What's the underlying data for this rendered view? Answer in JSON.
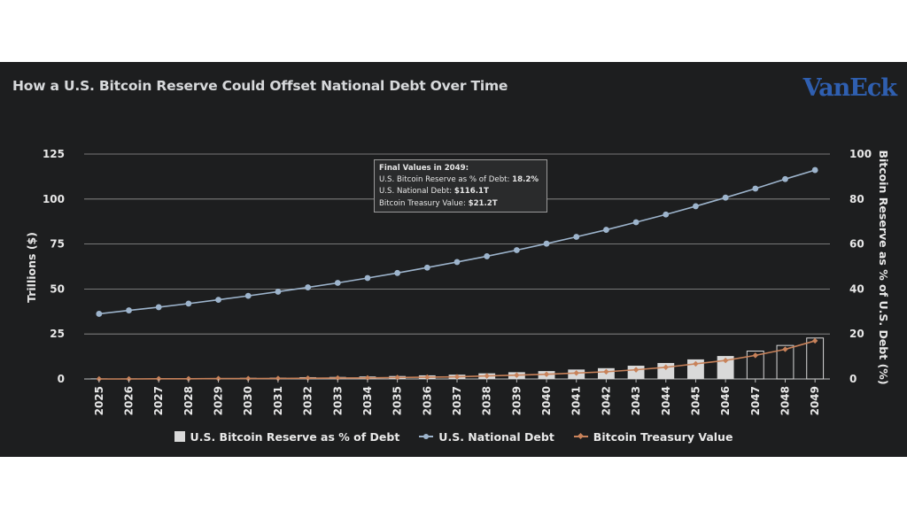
{
  "header": {
    "title": "How a U.S. Bitcoin Reserve Could Offset National Debt Over Time",
    "logo_text": "VanEck"
  },
  "tooltip": {
    "heading": "Final Values in 2049:",
    "rows": [
      {
        "label": "U.S. Bitcoin Reserve as % of Debt: ",
        "value": "18.2%"
      },
      {
        "label": "U.S. National Debt: ",
        "value": "$116.1T"
      },
      {
        "label": "Bitcoin Treasury Value: ",
        "value": "$21.2T"
      }
    ]
  },
  "colors": {
    "background": "#1d1e1f",
    "bars": "#d9d9d9",
    "bars_late": "#1d1e1f",
    "debt_line": "#9db4cc",
    "treasury_line": "#c8825a",
    "grid": "#bdbdbd"
  },
  "chart_data": {
    "type": "bar+line",
    "title": "How a U.S. Bitcoin Reserve Could Offset National Debt Over Time",
    "x": [
      "2025",
      "2026",
      "2027",
      "2028",
      "2029",
      "2030",
      "2031",
      "2032",
      "2033",
      "2034",
      "2035",
      "2036",
      "2037",
      "2038",
      "2039",
      "2040",
      "2041",
      "2042",
      "2043",
      "2044",
      "2045",
      "2046",
      "2047",
      "2048",
      "2049"
    ],
    "y_left": {
      "label": "Trillions ($)",
      "range": [
        0,
        125
      ],
      "ticks": [
        0,
        25,
        50,
        75,
        100,
        125
      ]
    },
    "y_right": {
      "label": "Bitcoin Reserve as % of U.S. Debt (%)",
      "range": [
        0,
        100
      ],
      "ticks": [
        0,
        20,
        40,
        60,
        80,
        100
      ]
    },
    "grid": true,
    "legend_position": "bottom",
    "series": [
      {
        "name": "U.S. Bitcoin Reserve as % of Debt",
        "kind": "bar",
        "axis": "right",
        "values": [
          0.1,
          0.2,
          0.2,
          0.3,
          0.4,
          0.5,
          0.6,
          0.8,
          0.9,
          1.1,
          1.3,
          1.6,
          1.9,
          2.5,
          3.0,
          3.5,
          4.2,
          4.8,
          5.9,
          7.1,
          8.7,
          10.2,
          12.4,
          14.9,
          18.2
        ]
      },
      {
        "name": "U.S. National Debt",
        "kind": "line",
        "axis": "left",
        "values": [
          36.2,
          38.1,
          39.9,
          41.9,
          44.0,
          46.2,
          48.5,
          50.9,
          53.4,
          56.1,
          58.9,
          61.9,
          65.0,
          68.2,
          71.6,
          75.2,
          79.0,
          82.9,
          87.1,
          91.4,
          96.0,
          100.8,
          105.8,
          111.1,
          116.1
        ]
      },
      {
        "name": "Bitcoin Treasury Value",
        "kind": "line",
        "axis": "left",
        "values": [
          0.0,
          0.0,
          0.1,
          0.1,
          0.2,
          0.2,
          0.3,
          0.4,
          0.5,
          0.6,
          0.8,
          1.0,
          1.2,
          1.7,
          2.1,
          2.6,
          3.3,
          4.0,
          5.1,
          6.5,
          8.4,
          10.3,
          13.1,
          16.5,
          21.2
        ]
      }
    ]
  }
}
